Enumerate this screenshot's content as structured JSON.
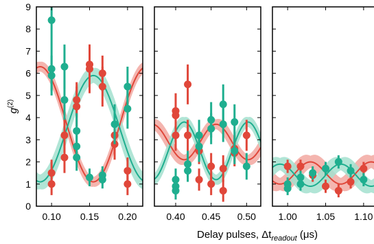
{
  "colors": {
    "red": "#e0473a",
    "teal": "#1fae8f",
    "red_band": "#f2a8a1",
    "teal_band": "#a3e0cf"
  },
  "xlabel": "Delay pulses, Δt",
  "xlabel_sub": "readout",
  "xlabel_unit": " (μs)",
  "ylabel": "g",
  "ylabel_sup": "(2)",
  "chart_data": [
    {
      "type": "scatter",
      "xlim": [
        0.08,
        0.22
      ],
      "ylim": [
        0,
        9
      ],
      "xticks": [
        0.1,
        0.15,
        0.2
      ],
      "xtick_labels": [
        "0.10",
        "0.15",
        "0.20"
      ],
      "yticks": [
        0,
        1,
        2,
        3,
        4,
        5,
        6,
        7,
        8,
        9
      ],
      "ytick_labels": [
        "0",
        "1",
        "2",
        "3",
        "4",
        "5",
        "6",
        "7",
        "8",
        "9"
      ],
      "fit": {
        "period": 0.14,
        "phase": 0.015
      },
      "series": [
        {
          "color_key": "red",
          "fit_mean": 3.7,
          "fit_amp": 2.6,
          "fit_sign": 1,
          "band_halfwidth": 0.4,
          "points": [
            {
              "x": 0.1,
              "y": 1.5,
              "err": 0.6
            },
            {
              "x": 0.1,
              "y": 1.0,
              "err": 0.5
            },
            {
              "x": 0.117,
              "y": 2.2,
              "err": 0.7
            },
            {
              "x": 0.117,
              "y": 3.2,
              "err": 0.8
            },
            {
              "x": 0.133,
              "y": 4.5,
              "err": 0.9
            },
            {
              "x": 0.133,
              "y": 4.8,
              "err": 0.8
            },
            {
              "x": 0.15,
              "y": 6.4,
              "err": 0.9
            },
            {
              "x": 0.15,
              "y": 6.2,
              "err": 1.1
            },
            {
              "x": 0.167,
              "y": 6.0,
              "err": 0.8
            },
            {
              "x": 0.167,
              "y": 5.4,
              "err": 0.9
            },
            {
              "x": 0.183,
              "y": 3.2,
              "err": 0.7
            },
            {
              "x": 0.183,
              "y": 2.8,
              "err": 0.7
            },
            {
              "x": 0.2,
              "y": 1.6,
              "err": 0.6
            },
            {
              "x": 0.2,
              "y": 1.0,
              "err": 0.5
            }
          ]
        },
        {
          "color_key": "teal",
          "fit_mean": 3.5,
          "fit_amp": 2.4,
          "fit_sign": -1,
          "band_halfwidth": 0.6,
          "points": [
            {
              "x": 0.1,
              "y": 8.4,
              "err": 1.2
            },
            {
              "x": 0.1,
              "y": 6.2,
              "err": 1.0
            },
            {
              "x": 0.1,
              "y": 5.9,
              "err": 0.9
            },
            {
              "x": 0.117,
              "y": 6.3,
              "err": 1.0
            },
            {
              "x": 0.117,
              "y": 4.8,
              "err": 0.9
            },
            {
              "x": 0.133,
              "y": 3.4,
              "err": 0.8
            },
            {
              "x": 0.133,
              "y": 2.7,
              "err": 0.7
            },
            {
              "x": 0.133,
              "y": 2.2,
              "err": 0.6
            },
            {
              "x": 0.15,
              "y": 1.3,
              "err": 0.4
            },
            {
              "x": 0.167,
              "y": 1.4,
              "err": 0.4
            },
            {
              "x": 0.167,
              "y": 1.2,
              "err": 0.4
            },
            {
              "x": 0.183,
              "y": 3.7,
              "err": 0.9
            },
            {
              "x": 0.2,
              "y": 5.4,
              "err": 0.9
            },
            {
              "x": 0.2,
              "y": 4.4,
              "err": 0.9
            }
          ]
        }
      ]
    },
    {
      "type": "scatter",
      "xlim": [
        0.37,
        0.52
      ],
      "ylim": [
        0,
        9
      ],
      "xticks": [
        0.4,
        0.45,
        0.5
      ],
      "xtick_labels": [
        "0.40",
        "0.45",
        "0.50"
      ],
      "fit": {
        "period": 0.09,
        "phase": 0.412
      },
      "series": [
        {
          "color_key": "red",
          "fit_mean": 2.9,
          "fit_amp": 0.8,
          "fit_sign": 1,
          "band_halfwidth": 0.4,
          "points": [
            {
              "x": 0.4,
              "y": 4.3,
              "err": 0.8
            },
            {
              "x": 0.4,
              "y": 4.1,
              "err": 0.7
            },
            {
              "x": 0.4,
              "y": 3.2,
              "err": 0.7
            },
            {
              "x": 0.417,
              "y": 5.5,
              "err": 0.9
            },
            {
              "x": 0.417,
              "y": 3.2,
              "err": 0.7
            },
            {
              "x": 0.433,
              "y": 2.5,
              "err": 0.6
            },
            {
              "x": 0.433,
              "y": 1.2,
              "err": 0.5
            },
            {
              "x": 0.45,
              "y": 1.8,
              "err": 0.6
            },
            {
              "x": 0.45,
              "y": 1.0,
              "err": 0.5
            },
            {
              "x": 0.467,
              "y": 1.7,
              "err": 0.6
            },
            {
              "x": 0.467,
              "y": 0.7,
              "err": 0.5
            },
            {
              "x": 0.483,
              "y": 2.6,
              "err": 0.6
            },
            {
              "x": 0.483,
              "y": 2.4,
              "err": 0.6
            },
            {
              "x": 0.5,
              "y": 3.2,
              "err": 0.7
            }
          ]
        },
        {
          "color_key": "teal",
          "fit_mean": 2.5,
          "fit_amp": 1.3,
          "fit_sign": -1,
          "band_halfwidth": 0.4,
          "points": [
            {
              "x": 0.4,
              "y": 1.2,
              "err": 0.5
            },
            {
              "x": 0.4,
              "y": 0.9,
              "err": 0.4
            },
            {
              "x": 0.4,
              "y": 0.7,
              "err": 0.4
            },
            {
              "x": 0.417,
              "y": 1.9,
              "err": 0.6
            },
            {
              "x": 0.417,
              "y": 1.6,
              "err": 0.5
            },
            {
              "x": 0.433,
              "y": 3.2,
              "err": 0.7
            },
            {
              "x": 0.433,
              "y": 2.7,
              "err": 0.7
            },
            {
              "x": 0.45,
              "y": 3.9,
              "err": 0.8
            },
            {
              "x": 0.45,
              "y": 3.5,
              "err": 0.7
            },
            {
              "x": 0.467,
              "y": 4.6,
              "err": 0.9
            },
            {
              "x": 0.467,
              "y": 3.7,
              "err": 0.8
            },
            {
              "x": 0.483,
              "y": 3.8,
              "err": 0.8
            },
            {
              "x": 0.483,
              "y": 2.5,
              "err": 0.6
            },
            {
              "x": 0.5,
              "y": 1.8,
              "err": 0.6
            }
          ]
        }
      ]
    },
    {
      "type": "scatter",
      "xlim": [
        0.98,
        1.12
      ],
      "ylim": [
        0,
        9
      ],
      "xticks": [
        1.0,
        1.05,
        1.1
      ],
      "xtick_labels": [
        "1.00",
        "1.05",
        "1.10"
      ],
      "fit": {
        "period": 0.08,
        "phase": 0.99
      },
      "series": [
        {
          "color_key": "red",
          "fit_mean": 1.5,
          "fit_amp": 0.5,
          "fit_sign": 1,
          "band_halfwidth": 0.5,
          "points": [
            {
              "x": 1.0,
              "y": 1.8,
              "err": 0.3
            },
            {
              "x": 1.017,
              "y": 1.8,
              "err": 0.3
            },
            {
              "x": 1.033,
              "y": 1.4,
              "err": 0.3
            },
            {
              "x": 1.05,
              "y": 0.9,
              "err": 0.3
            },
            {
              "x": 1.067,
              "y": 0.7,
              "err": 0.3
            },
            {
              "x": 1.083,
              "y": 1.1,
              "err": 0.3
            },
            {
              "x": 1.1,
              "y": 1.7,
              "err": 0.3
            }
          ]
        },
        {
          "color_key": "teal",
          "fit_mean": 1.4,
          "fit_amp": 0.5,
          "fit_sign": -1,
          "band_halfwidth": 0.5,
          "points": [
            {
              "x": 1.0,
              "y": 0.8,
              "err": 0.3
            },
            {
              "x": 1.0,
              "y": 1.0,
              "err": 0.3
            },
            {
              "x": 1.017,
              "y": 1.0,
              "err": 0.3
            },
            {
              "x": 1.017,
              "y": 1.3,
              "err": 0.3
            },
            {
              "x": 1.033,
              "y": 1.5,
              "err": 0.3
            },
            {
              "x": 1.05,
              "y": 1.7,
              "err": 0.3
            },
            {
              "x": 1.067,
              "y": 2.0,
              "err": 0.3
            },
            {
              "x": 1.083,
              "y": 1.6,
              "err": 0.3
            },
            {
              "x": 1.1,
              "y": 1.2,
              "err": 0.3
            }
          ]
        }
      ]
    }
  ]
}
